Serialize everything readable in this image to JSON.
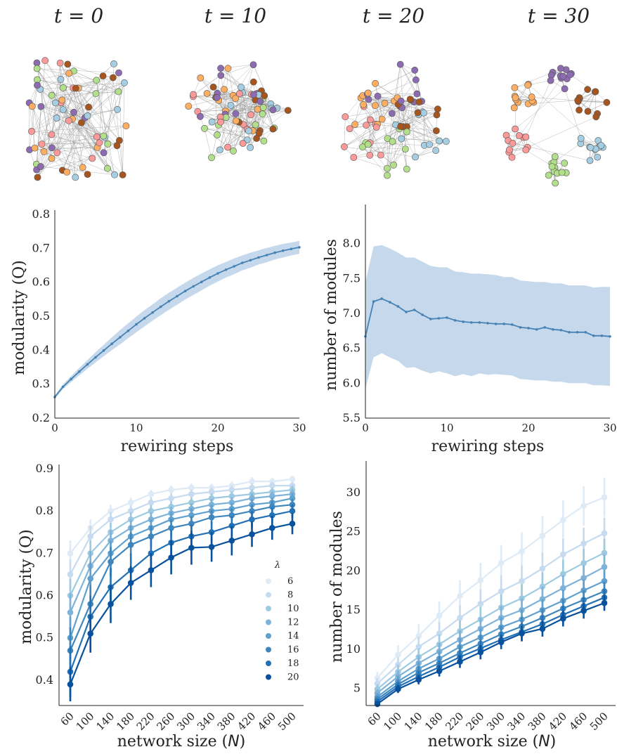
{
  "networks": {
    "titles": [
      "t = 0",
      "t = 10",
      "t = 20",
      "t = 30"
    ],
    "colors": [
      "#a6cee3",
      "#b2df8a",
      "#fb9a99",
      "#fdae61",
      "#8c6bb1",
      "#a6551e",
      "#f47f7f",
      "#f6a43c"
    ]
  },
  "chart_data": [
    {
      "type": "line",
      "id": "modularity_vs_rewiring",
      "xlabel": "rewiring steps",
      "ylabel": "modularity (Q)",
      "xlim": [
        0,
        30
      ],
      "ylim": [
        0.2,
        0.8
      ],
      "xticks": [
        "0",
        "10",
        "20",
        "30"
      ],
      "yticks": [
        "0.2",
        "0.3",
        "0.4",
        "0.5",
        "0.6",
        "0.7",
        "0.8"
      ],
      "x": [
        0,
        1,
        2,
        3,
        4,
        5,
        6,
        7,
        8,
        9,
        10,
        11,
        12,
        13,
        14,
        15,
        16,
        17,
        18,
        19,
        20,
        21,
        22,
        23,
        24,
        25,
        26,
        27,
        28,
        29,
        30
      ],
      "y": [
        0.262,
        0.292,
        0.315,
        0.337,
        0.358,
        0.379,
        0.399,
        0.419,
        0.438,
        0.457,
        0.476,
        0.494,
        0.511,
        0.528,
        0.544,
        0.559,
        0.574,
        0.588,
        0.601,
        0.614,
        0.626,
        0.637,
        0.647,
        0.657,
        0.665,
        0.673,
        0.68,
        0.687,
        0.693,
        0.698,
        0.703
      ],
      "band_width": [
        0.005,
        0.007,
        0.009,
        0.011,
        0.013,
        0.015,
        0.017,
        0.019,
        0.021,
        0.022,
        0.023,
        0.024,
        0.024,
        0.025,
        0.025,
        0.025,
        0.025,
        0.025,
        0.025,
        0.024,
        0.024,
        0.023,
        0.023,
        0.022,
        0.022,
        0.021,
        0.021,
        0.02,
        0.02,
        0.019,
        0.019
      ],
      "color": "#4682b4",
      "band_color": "#c6d9ec",
      "grid": false
    },
    {
      "type": "line",
      "id": "modules_vs_rewiring",
      "xlabel": "rewiring steps",
      "ylabel": "number of modules",
      "xlim": [
        0,
        30
      ],
      "ylim": [
        5.5,
        8.5
      ],
      "xticks": [
        "0",
        "10",
        "20",
        "30"
      ],
      "yticks": [
        "5.5",
        "6.0",
        "6.5",
        "7.0",
        "7.5",
        "8.0"
      ],
      "x": [
        0,
        1,
        2,
        3,
        4,
        5,
        6,
        7,
        8,
        9,
        10,
        11,
        12,
        13,
        14,
        15,
        16,
        17,
        18,
        19,
        20,
        21,
        22,
        23,
        24,
        25,
        26,
        27,
        28,
        29,
        30
      ],
      "y": [
        6.67,
        7.17,
        7.21,
        7.16,
        7.1,
        7.02,
        7.05,
        6.98,
        6.92,
        6.93,
        6.94,
        6.9,
        6.88,
        6.87,
        6.87,
        6.86,
        6.85,
        6.85,
        6.84,
        6.8,
        6.79,
        6.77,
        6.8,
        6.77,
        6.76,
        6.73,
        6.73,
        6.73,
        6.68,
        6.68,
        6.67
      ],
      "upper": [
        7.45,
        7.96,
        7.98,
        7.93,
        7.87,
        7.8,
        7.8,
        7.74,
        7.68,
        7.66,
        7.66,
        7.6,
        7.59,
        7.57,
        7.57,
        7.56,
        7.55,
        7.52,
        7.52,
        7.47,
        7.46,
        7.45,
        7.45,
        7.43,
        7.43,
        7.4,
        7.4,
        7.4,
        7.37,
        7.38,
        7.38
      ],
      "lower": [
        5.92,
        6.37,
        6.43,
        6.37,
        6.32,
        6.22,
        6.23,
        6.18,
        6.14,
        6.17,
        6.14,
        6.1,
        6.13,
        6.1,
        6.14,
        6.12,
        6.13,
        6.12,
        6.11,
        6.06,
        6.05,
        6.04,
        6.04,
        6.02,
        6.02,
        6.0,
        6.0,
        6.0,
        5.97,
        5.97,
        5.96
      ],
      "color": "#4682b4",
      "band_color": "#c6d9ec",
      "grid": false
    },
    {
      "type": "line",
      "id": "modularity_vs_size",
      "xlabel": "network size (N)",
      "ylabel": "modularity (Q)",
      "ylim": [
        0.34,
        0.9
      ],
      "yticks": [
        "0.4",
        "0.5",
        "0.6",
        "0.7",
        "0.8",
        "0.9"
      ],
      "categories": [
        "60",
        "100",
        "140",
        "180",
        "220",
        "260",
        "300",
        "340",
        "380",
        "420",
        "460",
        "500"
      ],
      "legend_title": "λ",
      "legend_position": "right",
      "series": [
        {
          "name": "6",
          "color": "#deebf7",
          "values": [
            0.7,
            0.76,
            0.8,
            0.82,
            0.84,
            0.85,
            0.855,
            0.855,
            0.86,
            0.87,
            0.87,
            0.875
          ],
          "err": [
            0.03,
            0.02,
            0.015,
            0.012,
            0.01,
            0.01,
            0.01,
            0.01,
            0.01,
            0.01,
            0.008,
            0.008
          ]
        },
        {
          "name": "8",
          "color": "#c6dbef",
          "values": [
            0.65,
            0.74,
            0.78,
            0.8,
            0.82,
            0.83,
            0.84,
            0.845,
            0.85,
            0.855,
            0.86,
            0.86
          ],
          "err": [
            0.035,
            0.025,
            0.018,
            0.014,
            0.012,
            0.012,
            0.011,
            0.011,
            0.01,
            0.01,
            0.009,
            0.009
          ]
        },
        {
          "name": "10",
          "color": "#9ecae1",
          "values": [
            0.6,
            0.7,
            0.75,
            0.78,
            0.8,
            0.81,
            0.82,
            0.83,
            0.835,
            0.84,
            0.845,
            0.85
          ],
          "err": [
            0.04,
            0.03,
            0.022,
            0.017,
            0.014,
            0.013,
            0.012,
            0.012,
            0.011,
            0.011,
            0.01,
            0.01
          ]
        },
        {
          "name": "12",
          "color": "#7fb2d9",
          "values": [
            0.56,
            0.67,
            0.73,
            0.76,
            0.78,
            0.795,
            0.805,
            0.815,
            0.82,
            0.83,
            0.835,
            0.84
          ],
          "err": [
            0.045,
            0.035,
            0.025,
            0.02,
            0.016,
            0.015,
            0.013,
            0.013,
            0.012,
            0.012,
            0.011,
            0.011
          ]
        },
        {
          "name": "14",
          "color": "#5fa0cf",
          "values": [
            0.5,
            0.64,
            0.7,
            0.74,
            0.76,
            0.78,
            0.79,
            0.8,
            0.805,
            0.815,
            0.82,
            0.83
          ],
          "err": [
            0.05,
            0.04,
            0.03,
            0.025,
            0.02,
            0.018,
            0.016,
            0.015,
            0.014,
            0.013,
            0.012,
            0.012
          ]
        },
        {
          "name": "16",
          "color": "#3f86bd",
          "values": [
            0.47,
            0.58,
            0.68,
            0.72,
            0.74,
            0.76,
            0.77,
            0.785,
            0.79,
            0.8,
            0.81,
            0.815
          ],
          "err": [
            0.055,
            0.045,
            0.035,
            0.03,
            0.025,
            0.02,
            0.018,
            0.017,
            0.016,
            0.015,
            0.014,
            0.013
          ]
        },
        {
          "name": "18",
          "color": "#2270b5",
          "values": [
            0.42,
            0.55,
            0.62,
            0.66,
            0.7,
            0.725,
            0.74,
            0.75,
            0.765,
            0.78,
            0.79,
            0.8
          ],
          "err": [
            0.06,
            0.05,
            0.045,
            0.04,
            0.035,
            0.03,
            0.028,
            0.025,
            0.022,
            0.02,
            0.018,
            0.016
          ]
        },
        {
          "name": "20",
          "color": "#08519c",
          "values": [
            0.39,
            0.51,
            0.58,
            0.63,
            0.66,
            0.69,
            0.713,
            0.715,
            0.73,
            0.745,
            0.76,
            0.77
          ],
          "err": [
            0.04,
            0.045,
            0.045,
            0.04,
            0.04,
            0.04,
            0.04,
            0.035,
            0.035,
            0.03,
            0.028,
            0.025
          ]
        }
      ],
      "grid": false
    },
    {
      "type": "line",
      "id": "modules_vs_size",
      "xlabel": "network size (N)",
      "ylabel": "number of modules",
      "ylim": [
        2.8,
        33.5
      ],
      "yticks": [
        "5",
        "10",
        "15",
        "20",
        "25",
        "30"
      ],
      "categories": [
        "60",
        "100",
        "140",
        "180",
        "220",
        "260",
        "300",
        "340",
        "380",
        "420",
        "460",
        "500"
      ],
      "series": [
        {
          "name": "6",
          "color": "#deebf7",
          "values": [
            6.3,
            9.3,
            11.7,
            14.3,
            16.8,
            18.8,
            21.0,
            22.5,
            24.5,
            26.5,
            28.3,
            29.4
          ],
          "err": [
            0.8,
            1.2,
            1.5,
            1.8,
            2.0,
            2.2,
            2.3,
            2.4,
            2.5,
            2.5,
            2.5,
            2.5
          ]
        },
        {
          "name": "8",
          "color": "#c6dbef",
          "values": [
            5.6,
            8.0,
            10.3,
            12.0,
            14.0,
            15.8,
            17.4,
            18.7,
            20.3,
            22.1,
            23.5,
            24.8
          ],
          "err": [
            0.7,
            1.0,
            1.3,
            1.5,
            1.6,
            1.8,
            2.0,
            2.0,
            2.0,
            2.0,
            2.0,
            2.0
          ]
        },
        {
          "name": "10",
          "color": "#9ecae1",
          "values": [
            4.9,
            7.1,
            9.0,
            10.6,
            12.3,
            13.8,
            15.3,
            16.5,
            18.0,
            19.6,
            21.0,
            22.3
          ],
          "err": [
            0.6,
            0.9,
            1.1,
            1.3,
            1.4,
            1.6,
            1.7,
            1.8,
            1.8,
            1.8,
            1.8,
            1.8
          ]
        },
        {
          "name": "12",
          "color": "#7fb2d9",
          "values": [
            4.4,
            6.5,
            8.2,
            9.7,
            11.2,
            12.6,
            14.0,
            15.0,
            16.4,
            17.8,
            19.1,
            20.5
          ],
          "err": [
            0.5,
            0.8,
            1.0,
            1.1,
            1.2,
            1.4,
            1.5,
            1.5,
            1.6,
            1.6,
            1.6,
            1.6
          ]
        },
        {
          "name": "14",
          "color": "#5fa0cf",
          "values": [
            3.9,
            5.9,
            7.5,
            8.8,
            10.3,
            11.5,
            12.8,
            13.8,
            15.0,
            16.2,
            17.5,
            18.7
          ],
          "err": [
            0.5,
            0.7,
            0.9,
            1.0,
            1.1,
            1.2,
            1.3,
            1.3,
            1.4,
            1.4,
            1.4,
            1.4
          ]
        },
        {
          "name": "16",
          "color": "#3f86bd",
          "values": [
            3.6,
            5.5,
            7.0,
            8.2,
            9.5,
            10.7,
            11.9,
            12.9,
            14.0,
            15.2,
            16.3,
            17.4
          ],
          "err": [
            0.4,
            0.6,
            0.8,
            0.9,
            1.0,
            1.1,
            1.1,
            1.2,
            1.2,
            1.2,
            1.2,
            1.2
          ]
        },
        {
          "name": "18",
          "color": "#2270b5",
          "values": [
            3.3,
            5.2,
            6.5,
            7.7,
            9.0,
            10.1,
            11.2,
            12.2,
            13.2,
            14.4,
            15.5,
            16.6
          ],
          "err": [
            0.4,
            0.6,
            0.7,
            0.8,
            0.9,
            1.0,
            1.0,
            1.1,
            1.1,
            1.1,
            1.1,
            1.1
          ]
        },
        {
          "name": "20",
          "color": "#08519c",
          "values": [
            3.0,
            4.9,
            6.1,
            7.2,
            8.4,
            9.6,
            10.9,
            12.0,
            12.6,
            13.9,
            14.9,
            15.9
          ],
          "err": [
            0.4,
            0.5,
            0.6,
            0.7,
            0.8,
            0.9,
            0.9,
            1.0,
            1.0,
            1.0,
            1.0,
            1.0
          ]
        }
      ],
      "grid": false
    }
  ]
}
